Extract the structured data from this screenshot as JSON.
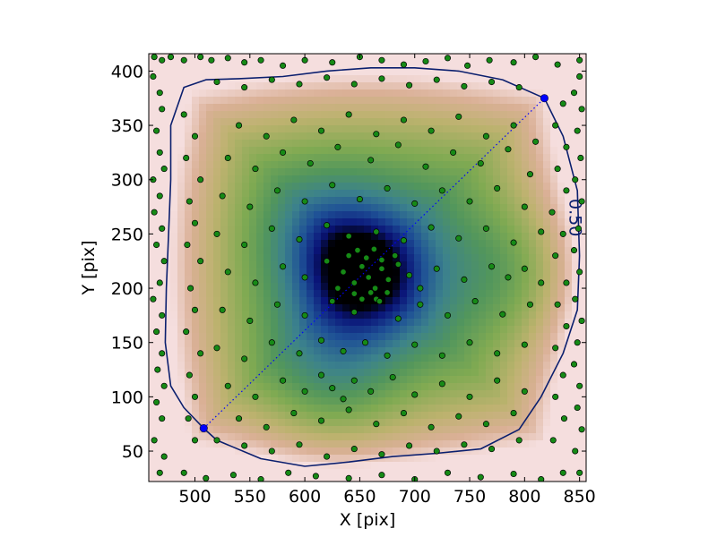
{
  "chart_data": {
    "type": "scatter",
    "title": "",
    "xlabel": "X [pix]",
    "ylabel": "Y [pix]",
    "xlim": [
      458,
      856
    ],
    "ylim": [
      22,
      416
    ],
    "xticks": [
      500,
      550,
      600,
      650,
      700,
      750,
      800,
      850
    ],
    "yticks": [
      50,
      100,
      150,
      200,
      250,
      300,
      350,
      400
    ],
    "grid": false,
    "legend": "none",
    "background": {
      "kind": "density-heatmap",
      "colormap": "gist_earth",
      "peaks": [
        {
          "x": 655,
          "y": 213,
          "weight": 1.0
        },
        {
          "x": 625,
          "y": 115,
          "weight": 0.45
        },
        {
          "x": 790,
          "y": 215,
          "weight": 0.42
        },
        {
          "x": 610,
          "y": 255,
          "weight": 0.3
        }
      ]
    },
    "contour": {
      "level_label": "0.50",
      "color": "#0b1f6e",
      "points": [
        [
          508,
          71
        ],
        [
          520,
          60
        ],
        [
          560,
          43
        ],
        [
          600,
          36
        ],
        [
          640,
          40
        ],
        [
          680,
          45
        ],
        [
          720,
          48
        ],
        [
          760,
          52
        ],
        [
          795,
          70
        ],
        [
          815,
          100
        ],
        [
          835,
          140
        ],
        [
          848,
          180
        ],
        [
          850,
          230
        ],
        [
          848,
          290
        ],
        [
          835,
          340
        ],
        [
          818,
          375
        ],
        [
          780,
          392
        ],
        [
          740,
          400
        ],
        [
          700,
          403
        ],
        [
          660,
          403
        ],
        [
          620,
          400
        ],
        [
          580,
          395
        ],
        [
          540,
          393
        ],
        [
          510,
          392
        ],
        [
          490,
          385
        ],
        [
          478,
          350
        ],
        [
          478,
          300
        ],
        [
          476,
          250
        ],
        [
          474,
          200
        ],
        [
          473,
          150
        ],
        [
          478,
          110
        ],
        [
          490,
          90
        ],
        [
          508,
          71
        ]
      ]
    },
    "diagonal": {
      "x": [
        508,
        818
      ],
      "y": [
        71,
        375
      ],
      "color": "#0000ff"
    },
    "points_color": "#168a16",
    "points": [
      [
        463,
        413
      ],
      [
        470,
        410
      ],
      [
        478,
        413
      ],
      [
        490,
        410
      ],
      [
        505,
        413
      ],
      [
        515,
        410
      ],
      [
        530,
        412
      ],
      [
        545,
        408
      ],
      [
        560,
        410
      ],
      [
        580,
        405
      ],
      [
        600,
        410
      ],
      [
        625,
        408
      ],
      [
        650,
        413
      ],
      [
        670,
        410
      ],
      [
        690,
        406
      ],
      [
        710,
        409
      ],
      [
        730,
        412
      ],
      [
        748,
        405
      ],
      [
        768,
        410
      ],
      [
        790,
        408
      ],
      [
        810,
        413
      ],
      [
        830,
        406
      ],
      [
        850,
        410
      ],
      [
        462,
        395
      ],
      [
        468,
        380
      ],
      [
        470,
        365
      ],
      [
        465,
        345
      ],
      [
        468,
        325
      ],
      [
        472,
        310
      ],
      [
        462,
        300
      ],
      [
        468,
        285
      ],
      [
        463,
        270
      ],
      [
        470,
        255
      ],
      [
        465,
        240
      ],
      [
        472,
        225
      ],
      [
        468,
        205
      ],
      [
        462,
        190
      ],
      [
        470,
        175
      ],
      [
        465,
        160
      ],
      [
        470,
        140
      ],
      [
        466,
        125
      ],
      [
        472,
        110
      ],
      [
        465,
        95
      ],
      [
        470,
        80
      ],
      [
        463,
        60
      ],
      [
        472,
        45
      ],
      [
        468,
        30
      ],
      [
        850,
        395
      ],
      [
        845,
        380
      ],
      [
        852,
        365
      ],
      [
        848,
        345
      ],
      [
        851,
        320
      ],
      [
        846,
        300
      ],
      [
        852,
        280
      ],
      [
        849,
        255
      ],
      [
        845,
        235
      ],
      [
        850,
        215
      ],
      [
        846,
        190
      ],
      [
        852,
        170
      ],
      [
        848,
        150
      ],
      [
        845,
        130
      ],
      [
        850,
        110
      ],
      [
        848,
        90
      ],
      [
        852,
        70
      ],
      [
        846,
        50
      ],
      [
        850,
        30
      ],
      [
        490,
        30
      ],
      [
        510,
        25
      ],
      [
        535,
        28
      ],
      [
        560,
        24
      ],
      [
        585,
        30
      ],
      [
        610,
        27
      ],
      [
        640,
        25
      ],
      [
        670,
        28
      ],
      [
        700,
        24
      ],
      [
        730,
        30
      ],
      [
        760,
        26
      ],
      [
        790,
        29
      ],
      [
        815,
        24
      ],
      [
        835,
        30
      ],
      [
        490,
        360
      ],
      [
        500,
        340
      ],
      [
        492,
        320
      ],
      [
        505,
        300
      ],
      [
        495,
        280
      ],
      [
        500,
        260
      ],
      [
        493,
        240
      ],
      [
        505,
        225
      ],
      [
        496,
        200
      ],
      [
        500,
        180
      ],
      [
        492,
        160
      ],
      [
        505,
        140
      ],
      [
        495,
        120
      ],
      [
        500,
        100
      ],
      [
        494,
        80
      ],
      [
        500,
        60
      ],
      [
        835,
        370
      ],
      [
        828,
        350
      ],
      [
        838,
        330
      ],
      [
        830,
        310
      ],
      [
        838,
        290
      ],
      [
        825,
        270
      ],
      [
        835,
        250
      ],
      [
        828,
        230
      ],
      [
        838,
        205
      ],
      [
        830,
        185
      ],
      [
        838,
        165
      ],
      [
        828,
        145
      ],
      [
        835,
        120
      ],
      [
        828,
        100
      ],
      [
        836,
        80
      ],
      [
        826,
        60
      ],
      [
        520,
        390
      ],
      [
        545,
        385
      ],
      [
        570,
        392
      ],
      [
        595,
        388
      ],
      [
        620,
        394
      ],
      [
        645,
        388
      ],
      [
        670,
        393
      ],
      [
        695,
        387
      ],
      [
        720,
        392
      ],
      [
        745,
        386
      ],
      [
        770,
        390
      ],
      [
        795,
        385
      ],
      [
        520,
        60
      ],
      [
        545,
        55
      ],
      [
        570,
        50
      ],
      [
        595,
        56
      ],
      [
        620,
        45
      ],
      [
        645,
        52
      ],
      [
        670,
        47
      ],
      [
        695,
        55
      ],
      [
        720,
        50
      ],
      [
        745,
        56
      ],
      [
        770,
        52
      ],
      [
        795,
        60
      ],
      [
        540,
        350
      ],
      [
        565,
        340
      ],
      [
        590,
        355
      ],
      [
        615,
        345
      ],
      [
        640,
        360
      ],
      [
        665,
        342
      ],
      [
        690,
        355
      ],
      [
        715,
        345
      ],
      [
        740,
        358
      ],
      [
        765,
        340
      ],
      [
        790,
        350
      ],
      [
        810,
        335
      ],
      [
        530,
        320
      ],
      [
        555,
        310
      ],
      [
        580,
        325
      ],
      [
        605,
        315
      ],
      [
        630,
        330
      ],
      [
        660,
        318
      ],
      [
        685,
        332
      ],
      [
        710,
        312
      ],
      [
        735,
        325
      ],
      [
        760,
        315
      ],
      [
        785,
        328
      ],
      [
        805,
        305
      ],
      [
        525,
        285
      ],
      [
        550,
        275
      ],
      [
        575,
        290
      ],
      [
        600,
        280
      ],
      [
        625,
        295
      ],
      [
        650,
        282
      ],
      [
        675,
        292
      ],
      [
        700,
        278
      ],
      [
        725,
        290
      ],
      [
        750,
        280
      ],
      [
        775,
        292
      ],
      [
        800,
        275
      ],
      [
        520,
        250
      ],
      [
        545,
        240
      ],
      [
        570,
        255
      ],
      [
        595,
        245
      ],
      [
        620,
        258
      ],
      [
        640,
        248
      ],
      [
        665,
        252
      ],
      [
        690,
        244
      ],
      [
        715,
        256
      ],
      [
        740,
        246
      ],
      [
        765,
        255
      ],
      [
        790,
        242
      ],
      [
        815,
        252
      ],
      [
        530,
        215
      ],
      [
        555,
        205
      ],
      [
        580,
        220
      ],
      [
        600,
        210
      ],
      [
        620,
        225
      ],
      [
        635,
        215
      ],
      [
        645,
        205
      ],
      [
        652,
        220
      ],
      [
        658,
        210
      ],
      [
        664,
        200
      ],
      [
        670,
        218
      ],
      [
        676,
        208
      ],
      [
        685,
        222
      ],
      [
        695,
        212
      ],
      [
        705,
        200
      ],
      [
        720,
        218
      ],
      [
        745,
        208
      ],
      [
        770,
        220
      ],
      [
        785,
        210
      ],
      [
        800,
        218
      ],
      [
        815,
        205
      ],
      [
        525,
        180
      ],
      [
        550,
        170
      ],
      [
        575,
        185
      ],
      [
        600,
        175
      ],
      [
        625,
        188
      ],
      [
        645,
        178
      ],
      [
        665,
        190
      ],
      [
        685,
        172
      ],
      [
        705,
        185
      ],
      [
        730,
        175
      ],
      [
        755,
        188
      ],
      [
        780,
        176
      ],
      [
        805,
        185
      ],
      [
        520,
        145
      ],
      [
        545,
        135
      ],
      [
        570,
        150
      ],
      [
        595,
        140
      ],
      [
        615,
        152
      ],
      [
        635,
        142
      ],
      [
        655,
        150
      ],
      [
        675,
        138
      ],
      [
        700,
        148
      ],
      [
        725,
        138
      ],
      [
        750,
        150
      ],
      [
        775,
        140
      ],
      [
        800,
        148
      ],
      [
        530,
        110
      ],
      [
        555,
        100
      ],
      [
        580,
        115
      ],
      [
        600,
        105
      ],
      [
        615,
        120
      ],
      [
        625,
        108
      ],
      [
        635,
        98
      ],
      [
        645,
        115
      ],
      [
        660,
        105
      ],
      [
        680,
        118
      ],
      [
        700,
        102
      ],
      [
        725,
        112
      ],
      [
        750,
        100
      ],
      [
        775,
        115
      ],
      [
        800,
        105
      ],
      [
        540,
        80
      ],
      [
        565,
        72
      ],
      [
        590,
        85
      ],
      [
        615,
        78
      ],
      [
        640,
        88
      ],
      [
        665,
        75
      ],
      [
        690,
        85
      ],
      [
        715,
        72
      ],
      [
        740,
        82
      ],
      [
        765,
        75
      ],
      [
        790,
        85
      ],
      [
        640,
        230
      ],
      [
        648,
        235
      ],
      [
        656,
        228
      ],
      [
        663,
        236
      ],
      [
        670,
        226
      ],
      [
        645,
        195
      ],
      [
        652,
        190
      ],
      [
        660,
        196
      ],
      [
        668,
        188
      ],
      [
        675,
        196
      ],
      [
        682,
        230
      ],
      [
        630,
        200
      ]
    ],
    "points_svg_x": [
      463,
      470,
      478,
      490,
      505,
      515,
      530,
      545,
      560,
      580,
      600,
      625,
      650,
      670,
      690,
      710,
      730,
      748,
      768,
      790,
      810,
      830,
      850
    ]
  }
}
